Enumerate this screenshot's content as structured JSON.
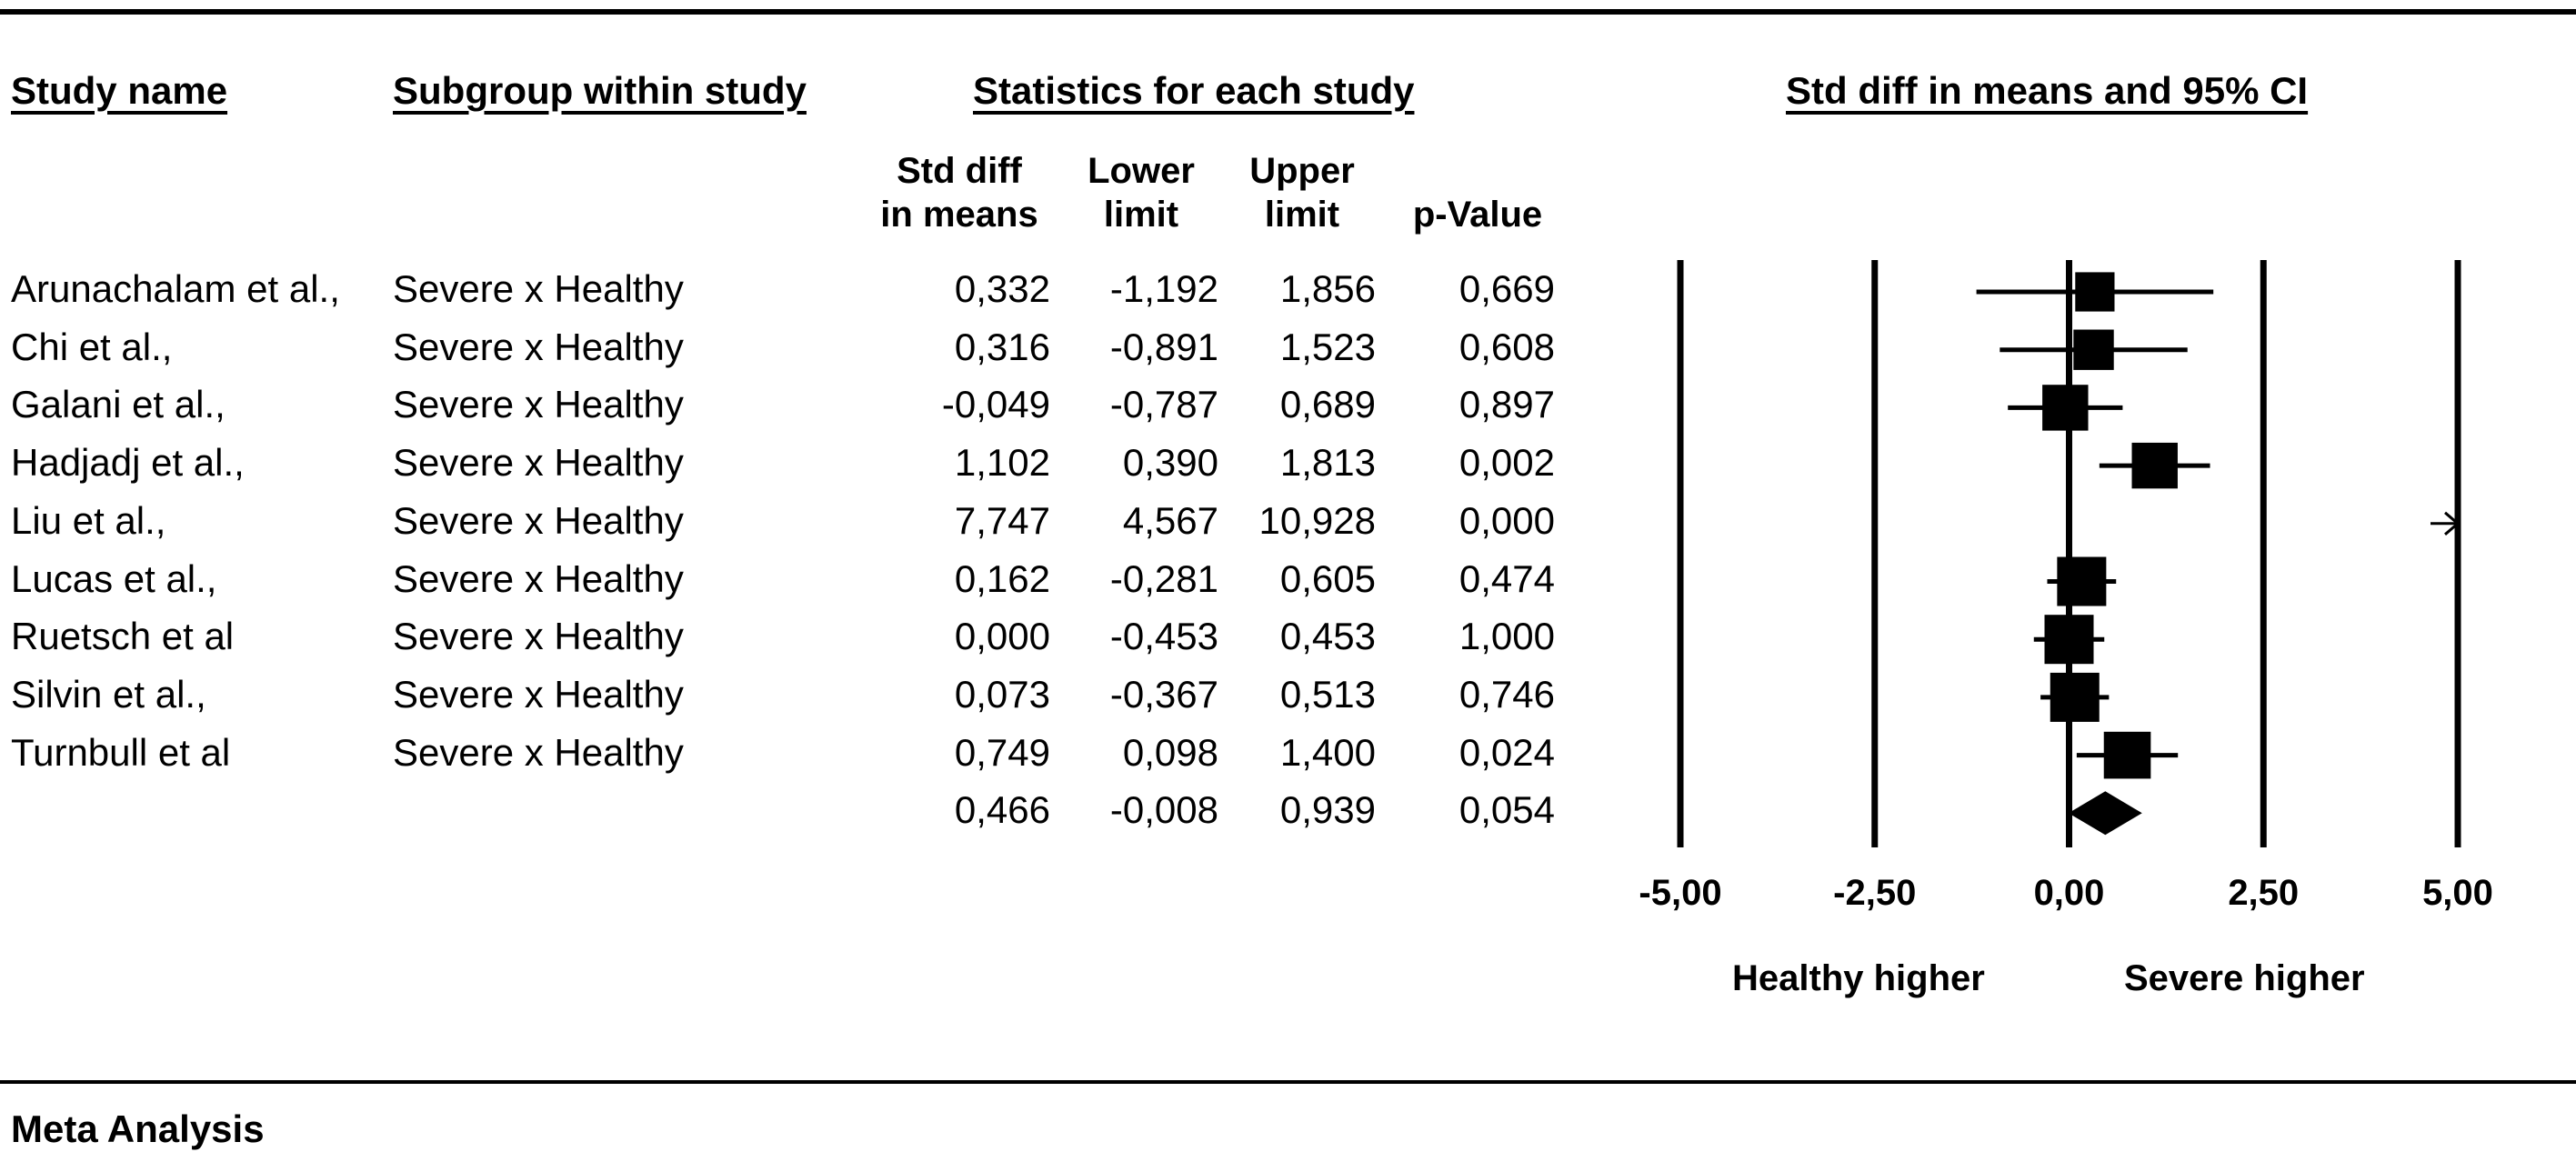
{
  "headers": {
    "study_name": "Study name",
    "subgroup": "Subgroup within study",
    "statistics": "Statistics for each study",
    "ci": "Std diff in means and 95% CI"
  },
  "columns": {
    "std_diff": "Std diff\nin means",
    "lower": "Lower\nlimit",
    "upper": "Upper\nlimit",
    "p": "p-Value"
  },
  "rows": [
    {
      "study": "Arunachalam et al.,",
      "subgroup": "Severe x Healthy",
      "std_diff": "0,332",
      "lower": "-1,192",
      "upper": "1,856",
      "p": "0,669"
    },
    {
      "study": "Chi et al.,",
      "subgroup": "Severe x Healthy",
      "std_diff": "0,316",
      "lower": "-0,891",
      "upper": "1,523",
      "p": "0,608"
    },
    {
      "study": "Galani et al.,",
      "subgroup": "Severe x Healthy",
      "std_diff": "-0,049",
      "lower": "-0,787",
      "upper": "0,689",
      "p": "0,897"
    },
    {
      "study": "Hadjadj et al.,",
      "subgroup": "Severe x Healthy",
      "std_diff": "1,102",
      "lower": "0,390",
      "upper": "1,813",
      "p": "0,002"
    },
    {
      "study": "Liu et al.,",
      "subgroup": "Severe x Healthy",
      "std_diff": "7,747",
      "lower": "4,567",
      "upper": "10,928",
      "p": "0,000"
    },
    {
      "study": "Lucas et al.,",
      "subgroup": "Severe x Healthy",
      "std_diff": "0,162",
      "lower": "-0,281",
      "upper": "0,605",
      "p": "0,474"
    },
    {
      "study": "Ruetsch et al",
      "subgroup": "Severe x Healthy",
      "std_diff": "0,000",
      "lower": "-0,453",
      "upper": "0,453",
      "p": "1,000"
    },
    {
      "study": "Silvin et al.,",
      "subgroup": "Severe x Healthy",
      "std_diff": "0,073",
      "lower": "-0,367",
      "upper": "0,513",
      "p": "0,746"
    },
    {
      "study": "Turnbull et al",
      "subgroup": "Severe x Healthy",
      "std_diff": "0,749",
      "lower": "0,098",
      "upper": "1,400",
      "p": "0,024"
    }
  ],
  "summary": {
    "std_diff": "0,466",
    "lower": "-0,008",
    "upper": "0,939",
    "p": "0,054"
  },
  "axis": {
    "ticks": [
      "-5,00",
      "-2,50",
      "0,00",
      "2,50",
      "5,00"
    ],
    "left_label": "Healthy higher",
    "right_label": "Severe higher"
  },
  "footer": "Meta Analysis",
  "chart_data": {
    "type": "forest",
    "title": "Std diff in means and 95% CI",
    "xlim": [
      -5,
      5
    ],
    "xticks": [
      -5,
      -2.5,
      0,
      2.5,
      5
    ],
    "xlabel_left": "Healthy higher",
    "xlabel_right": "Severe higher",
    "studies": [
      {
        "name": "Arunachalam et al.,",
        "estimate": 0.332,
        "lower": -1.192,
        "upper": 1.856,
        "weight": 0.55
      },
      {
        "name": "Chi et al.,",
        "estimate": 0.316,
        "lower": -0.891,
        "upper": 1.523,
        "weight": 0.6
      },
      {
        "name": "Galani et al.,",
        "estimate": -0.049,
        "lower": -0.787,
        "upper": 0.689,
        "weight": 0.85
      },
      {
        "name": "Hadjadj et al.,",
        "estimate": 1.102,
        "lower": 0.39,
        "upper": 1.813,
        "weight": 0.85
      },
      {
        "name": "Liu et al.,",
        "estimate": 7.747,
        "lower": 4.567,
        "upper": 10.928,
        "weight": 0.0
      },
      {
        "name": "Lucas et al.,",
        "estimate": 0.162,
        "lower": -0.281,
        "upper": 0.605,
        "weight": 1.0
      },
      {
        "name": "Ruetsch et al",
        "estimate": 0.0,
        "lower": -0.453,
        "upper": 0.453,
        "weight": 1.0
      },
      {
        "name": "Silvin et al.,",
        "estimate": 0.073,
        "lower": -0.367,
        "upper": 0.513,
        "weight": 1.0
      },
      {
        "name": "Turnbull et al",
        "estimate": 0.749,
        "lower": 0.098,
        "upper": 1.4,
        "weight": 0.9
      }
    ],
    "summary": {
      "estimate": 0.466,
      "lower": -0.008,
      "upper": 0.939
    }
  }
}
